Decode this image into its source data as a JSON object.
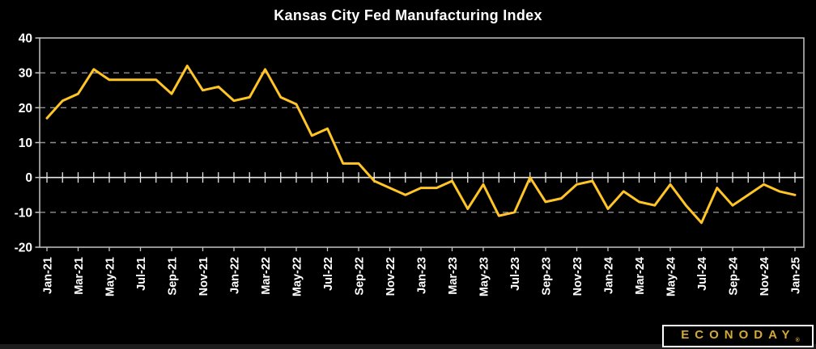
{
  "title": "Kansas City Fed Manufacturing Index",
  "logo": {
    "text": "ECONODAY",
    "registered": "®"
  },
  "colors": {
    "background": "#000000",
    "line": "#FFC425",
    "grid": "#8F8F8F",
    "border": "#C4C4C4",
    "zero_axis": "#E8E8E8",
    "label_text": "#FFFFFF",
    "logo_gold": "#D4A937",
    "logo_border": "#FFFFFF"
  },
  "chart_data": {
    "type": "line",
    "title": "Kansas City Fed Manufacturing Index",
    "xlabel": "",
    "ylabel": "",
    "legend_position": "none",
    "grid": "horizontal dashed at 30,20,10,-10; solid ticked axis at 0; framed plot",
    "ylim": [
      -20,
      40
    ],
    "yticks": [
      40,
      30,
      20,
      10,
      0,
      -10,
      -20
    ],
    "x": [
      "Jan-21",
      "Feb-21",
      "Mar-21",
      "Apr-21",
      "May-21",
      "Jun-21",
      "Jul-21",
      "Aug-21",
      "Sep-21",
      "Oct-21",
      "Nov-21",
      "Dec-21",
      "Jan-22",
      "Feb-22",
      "Mar-22",
      "Apr-22",
      "May-22",
      "Jun-22",
      "Jul-22",
      "Aug-22",
      "Sep-22",
      "Oct-22",
      "Nov-22",
      "Dec-22",
      "Jan-23",
      "Feb-23",
      "Mar-23",
      "Apr-23",
      "May-23",
      "Jun-23",
      "Jul-23",
      "Aug-23",
      "Sep-23",
      "Oct-23",
      "Nov-23",
      "Dec-23",
      "Jan-24",
      "Feb-24",
      "Mar-24",
      "Apr-24",
      "May-24",
      "Jun-24",
      "Jul-24",
      "Aug-24",
      "Sep-24",
      "Oct-24",
      "Nov-24",
      "Dec-24",
      "Jan-25"
    ],
    "values": [
      17,
      22,
      24,
      31,
      28,
      28,
      28,
      28,
      24,
      32,
      25,
      26,
      22,
      23,
      31,
      23,
      21,
      12,
      14,
      4,
      4,
      -1,
      -3,
      -5,
      -3,
      -3,
      -1,
      -9,
      -2,
      -11,
      -10,
      0,
      -7,
      -6,
      -2,
      -1,
      -9,
      -4,
      -7,
      -8,
      -2,
      -8,
      -13,
      -3,
      -8,
      -5,
      -2,
      -4,
      -5
    ],
    "tick_labels": [
      "Jan-21",
      "Mar-21",
      "May-21",
      "Jul-21",
      "Sep-21",
      "Nov-21",
      "Jan-22",
      "Mar-22",
      "May-22",
      "Jul-22",
      "Sep-22",
      "Nov-22",
      "Jan-23",
      "Mar-23",
      "May-23",
      "Jul-23",
      "Sep-23",
      "Nov-23",
      "Jan-24",
      "Mar-24",
      "May-24",
      "Jul-24",
      "Sep-24",
      "Nov-24",
      "Jan-25"
    ]
  }
}
